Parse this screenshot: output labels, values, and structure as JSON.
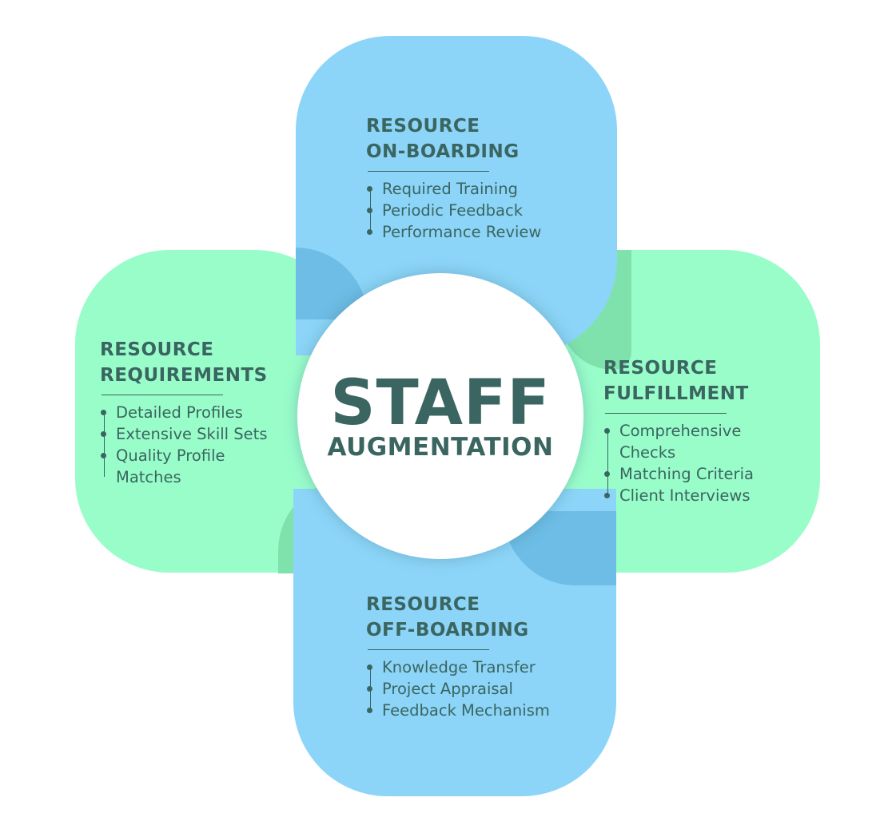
{
  "center": {
    "title": "STAFF",
    "subtitle": "AUGMENTATION"
  },
  "colors": {
    "blue_petal": "#8cd5f8",
    "green_petal": "#99fdca",
    "text": "#3a6560"
  },
  "blocks": {
    "onboarding": {
      "title_line1": "RESOURCE",
      "title_line2": "ON-BOARDING",
      "items": [
        "Required Training",
        "Periodic Feedback",
        "Performance Review"
      ]
    },
    "requirements": {
      "title_line1": "RESOURCE",
      "title_line2": "REQUIREMENTS",
      "items": [
        "Detailed Profiles",
        "Extensive Skill Sets",
        "Quality Profile",
        "Matches"
      ]
    },
    "fulfillment": {
      "title_line1": "RESOURCE",
      "title_line2": "FULFILLMENT",
      "items": [
        "Comprehensive",
        "Checks",
        "Matching Criteria",
        "Client Interviews"
      ]
    },
    "offboarding": {
      "title_line1": "RESOURCE",
      "title_line2": "OFF-BOARDING",
      "items": [
        "Knowledge Transfer",
        "Project Appraisal",
        "Feedback Mechanism"
      ]
    }
  }
}
